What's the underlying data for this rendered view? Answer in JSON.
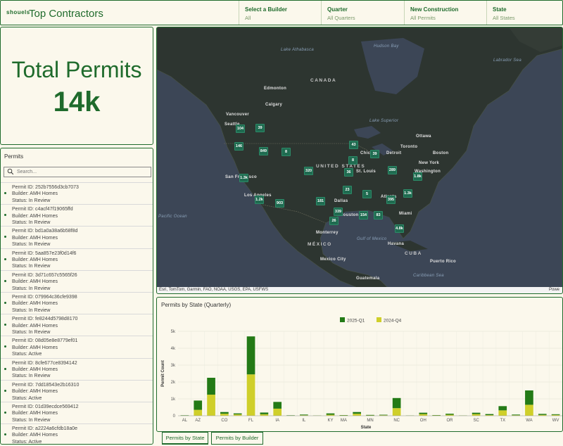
{
  "header": {
    "logo": "shouels",
    "title": "Top Contractors",
    "filters": [
      {
        "label": "Select a Builder",
        "value": "All"
      },
      {
        "label": "Quarter",
        "value": "All Quarters"
      },
      {
        "label": "New Construction",
        "value": "All Permits"
      },
      {
        "label": "State",
        "value": "All States"
      }
    ]
  },
  "total": {
    "title": "Total Permits",
    "value": "14k"
  },
  "permits": {
    "title": "Permits",
    "search_placeholder": "Search...",
    "items": [
      {
        "id": "Permit ID: 252b7556d3cb7073",
        "builder": "Builder: AMH Homes",
        "status": "Status: In Review"
      },
      {
        "id": "Permit ID: c4acf47f19065ffd",
        "builder": "Builder: AMH Homes",
        "status": "Status: In Review"
      },
      {
        "id": "Permit ID: bd1a0a38a6b58f8d",
        "builder": "Builder: AMH Homes",
        "status": "Status: In Review"
      },
      {
        "id": "Permit ID: 5aa857e23f0d14f6",
        "builder": "Builder: AMH Homes",
        "status": "Status: In Review"
      },
      {
        "id": "Permit ID: 3d71c657c5565f26",
        "builder": "Builder: AMH Homes",
        "status": "Status: In Review"
      },
      {
        "id": "Permit ID: 079964c36cfe9398",
        "builder": "Builder: AMH Homes",
        "status": "Status: In Review"
      },
      {
        "id": "Permit ID: fe8244d5798d8170",
        "builder": "Builder: AMH Homes",
        "status": "Status: In Review"
      },
      {
        "id": "Permit ID: 08d05e8e8779ef01",
        "builder": "Builder: AMH Homes",
        "status": "Status: Active"
      },
      {
        "id": "Permit ID: 8cfe677ce8394142",
        "builder": "Builder: AMH Homes",
        "status": "Status: In Review"
      },
      {
        "id": "Permit ID: 7dd18543e2b16310",
        "builder": "Builder: AMH Homes",
        "status": "Status: Active"
      },
      {
        "id": "Permit ID: 01d39ecdce569412",
        "builder": "Builder: AMH Homes",
        "status": "Status: In Review"
      },
      {
        "id": "Permit ID: a2224a6cfdb18a0e",
        "builder": "Builder: AMH Homes",
        "status": "Status: Active"
      }
    ]
  },
  "map": {
    "attribution": "Esri, TomTom, Garmin, FAO, NOAA, USGS, EPA, USFWS",
    "powered": "Powe",
    "labels": [
      {
        "text": "Lake Athabasca",
        "kind": "sea"
      },
      {
        "text": "Hudson Bay",
        "kind": "sea"
      },
      {
        "text": "Labrador Sea",
        "kind": "sea"
      },
      {
        "text": "CANADA",
        "kind": "country"
      },
      {
        "text": "Edmonton",
        "kind": "city"
      },
      {
        "text": "Calgary",
        "kind": "city"
      },
      {
        "text": "Vancouver",
        "kind": "city"
      },
      {
        "text": "Seattle",
        "kind": "city"
      },
      {
        "text": "UNITED STATES",
        "kind": "country"
      },
      {
        "text": "San Francisco",
        "kind": "city"
      },
      {
        "text": "Los Angeles",
        "kind": "city"
      },
      {
        "text": "Dallas",
        "kind": "city"
      },
      {
        "text": "Houston",
        "kind": "city"
      },
      {
        "text": "Monterrey",
        "kind": "city"
      },
      {
        "text": "MÉXICO",
        "kind": "country"
      },
      {
        "text": "Mexico City",
        "kind": "city"
      },
      {
        "text": "Guatemala",
        "kind": "city"
      },
      {
        "text": "Havana",
        "kind": "city"
      },
      {
        "text": "CUBA",
        "kind": "country"
      },
      {
        "text": "Puerto Rico",
        "kind": "city"
      },
      {
        "text": "Caribbean Sea",
        "kind": "sea"
      },
      {
        "text": "Gulf of Mexico",
        "kind": "sea"
      },
      {
        "text": "Pacific Ocean",
        "kind": "sea"
      },
      {
        "text": "Ottawa",
        "kind": "city"
      },
      {
        "text": "Toronto",
        "kind": "city"
      },
      {
        "text": "Detroit",
        "kind": "city"
      },
      {
        "text": "Chicago",
        "kind": "city"
      },
      {
        "text": "Boston",
        "kind": "city"
      },
      {
        "text": "New York",
        "kind": "city"
      },
      {
        "text": "Washington",
        "kind": "city"
      },
      {
        "text": "St. Louis",
        "kind": "city"
      },
      {
        "text": "Atlanta",
        "kind": "city"
      },
      {
        "text": "Miami",
        "kind": "city"
      },
      {
        "text": "Lake Superior",
        "kind": "sea"
      }
    ],
    "clusters": [
      "104",
      "39",
      "146",
      "849",
      "8",
      "1.3k",
      "320",
      "36",
      "43",
      "8",
      "39",
      "289",
      "1.2k",
      "903",
      "181",
      "339",
      "26",
      "154",
      "83",
      "395",
      "1.8k",
      "23",
      "5",
      "1.3k",
      "4.8k"
    ]
  },
  "chart_title": "Permits by State (Quarterly)",
  "chart_data": {
    "type": "bar",
    "stacked": true,
    "title": "",
    "xlabel": "State",
    "ylabel": "Permit Count",
    "ylim": [
      0,
      5000
    ],
    "yticks": [
      "0",
      "1k",
      "2k",
      "3k",
      "4k",
      "5k"
    ],
    "categories": [
      "AL",
      "AZ",
      "CA",
      "CO",
      "CT",
      "FL",
      "GA",
      "IA",
      "ID",
      "IL",
      "IN",
      "KY",
      "MA",
      "MD",
      "MN",
      "MO",
      "NC",
      "NJ",
      "OH",
      "OK",
      "OR",
      "PA",
      "SC",
      "TN",
      "TX",
      "VA",
      "WA",
      "WI",
      "WV"
    ],
    "xtick_labels": [
      "AL",
      "AZ",
      "CO",
      "FL",
      "IA",
      "IL",
      "KY",
      "MA",
      "MN",
      "NC",
      "OH",
      "OR",
      "SC",
      "TX",
      "WA",
      "WV"
    ],
    "legend_position": "top",
    "series": [
      {
        "name": "2025-Q1",
        "color": "#237a16",
        "values": [
          20,
          550,
          1000,
          100,
          60,
          2250,
          100,
          400,
          20,
          40,
          10,
          80,
          20,
          100,
          30,
          30,
          600,
          10,
          80,
          20,
          60,
          10,
          80,
          60,
          250,
          40,
          850,
          60,
          40
        ]
      },
      {
        "name": "2024-Q4",
        "color": "#cfcf2a",
        "values": [
          10,
          350,
          1250,
          120,
          80,
          2450,
          90,
          420,
          10,
          30,
          10,
          60,
          20,
          120,
          20,
          30,
          450,
          10,
          100,
          20,
          60,
          10,
          100,
          40,
          320,
          30,
          650,
          50,
          50
        ]
      }
    ]
  },
  "tabs": [
    "Permits by State",
    "Permits by Builder"
  ]
}
